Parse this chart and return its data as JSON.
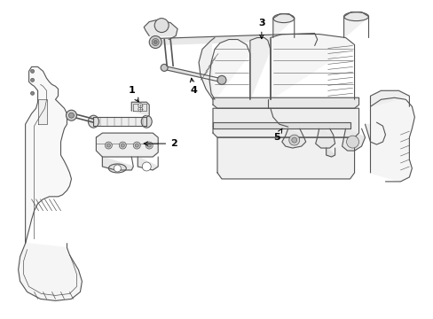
{
  "bg_color": "#ffffff",
  "line_color": "#555555",
  "label_color": "#000000",
  "fig_width": 4.89,
  "fig_height": 3.6,
  "dpi": 100
}
